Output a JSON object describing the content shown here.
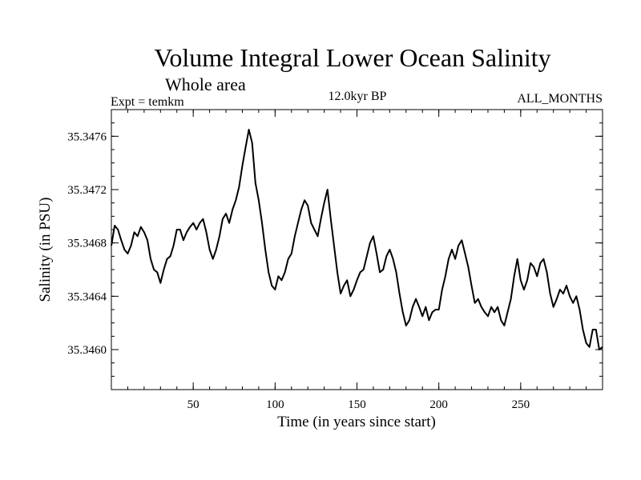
{
  "chart_data": {
    "type": "line",
    "title": "Volume Integral Lower Ocean Salinity",
    "subtitle": "Whole area",
    "header_left": "Expt = temkm",
    "header_center": "12.0kyr BP",
    "header_right": "ALL_MONTHS",
    "xlabel": "Time (in years since start)",
    "ylabel": "Salinity (in PSU)",
    "xlim": [
      0,
      300
    ],
    "ylim": [
      35.3457,
      35.3478
    ],
    "xticks": [
      50,
      100,
      150,
      200,
      250
    ],
    "xtick_labels": [
      "50",
      "100",
      "150",
      "200",
      "250"
    ],
    "yticks": [
      35.346,
      35.3464,
      35.3468,
      35.3472,
      35.3476
    ],
    "ytick_labels": [
      "35.3460",
      "35.3464",
      "35.3468",
      "35.3472",
      "35.3476"
    ],
    "x_minor_step": 10,
    "y_minor_step": 0.0001,
    "grid": false,
    "line_color": "#000000",
    "series": [
      {
        "name": "salinity",
        "x": [
          0,
          2,
          4,
          6,
          8,
          10,
          12,
          14,
          16,
          18,
          20,
          22,
          24,
          26,
          28,
          30,
          32,
          34,
          36,
          38,
          40,
          42,
          44,
          46,
          48,
          50,
          52,
          54,
          56,
          58,
          60,
          62,
          64,
          66,
          68,
          70,
          72,
          74,
          76,
          78,
          80,
          82,
          84,
          86,
          88,
          90,
          92,
          94,
          96,
          98,
          100,
          102,
          104,
          106,
          108,
          110,
          112,
          114,
          116,
          118,
          120,
          122,
          124,
          126,
          128,
          130,
          132,
          134,
          136,
          138,
          140,
          142,
          144,
          146,
          148,
          150,
          152,
          154,
          156,
          158,
          160,
          162,
          164,
          166,
          168,
          170,
          172,
          174,
          176,
          178,
          180,
          182,
          184,
          186,
          188,
          190,
          192,
          194,
          196,
          198,
          200,
          202,
          204,
          206,
          208,
          210,
          212,
          214,
          216,
          218,
          220,
          222,
          224,
          226,
          228,
          230,
          232,
          234,
          236,
          238,
          240,
          242,
          244,
          246,
          248,
          250,
          252,
          254,
          256,
          258,
          260,
          262,
          264,
          266,
          268,
          270,
          272,
          274,
          276,
          278,
          280,
          282,
          284,
          286,
          288,
          290,
          292,
          294,
          296,
          298,
          300
        ],
        "values": [
          35.34678,
          35.34693,
          35.3469,
          35.34682,
          35.34675,
          35.34672,
          35.34678,
          35.34688,
          35.34685,
          35.34692,
          35.34688,
          35.34682,
          35.34668,
          35.3466,
          35.34658,
          35.3465,
          35.3466,
          35.34668,
          35.3467,
          35.34678,
          35.3469,
          35.3469,
          35.34682,
          35.34688,
          35.34692,
          35.34695,
          35.3469,
          35.34695,
          35.34698,
          35.34688,
          35.34675,
          35.34668,
          35.34675,
          35.34685,
          35.34698,
          35.34702,
          35.34695,
          35.34705,
          35.34712,
          35.34722,
          35.34738,
          35.34752,
          35.34765,
          35.34755,
          35.34725,
          35.34712,
          35.34695,
          35.34675,
          35.34658,
          35.34648,
          35.34645,
          35.34655,
          35.34652,
          35.34658,
          35.34668,
          35.34672,
          35.34685,
          35.34695,
          35.34705,
          35.34712,
          35.34708,
          35.34695,
          35.3469,
          35.34685,
          35.34698,
          35.3471,
          35.3472,
          35.34698,
          35.34678,
          35.34658,
          35.34642,
          35.34648,
          35.34652,
          35.3464,
          35.34645,
          35.34652,
          35.34658,
          35.3466,
          35.3467,
          35.3468,
          35.34685,
          35.34672,
          35.34658,
          35.3466,
          35.3467,
          35.34675,
          35.34668,
          35.34658,
          35.34642,
          35.34628,
          35.34618,
          35.34622,
          35.34632,
          35.34638,
          35.34632,
          35.34625,
          35.34632,
          35.34622,
          35.34628,
          35.3463,
          35.3463,
          35.34645,
          35.34655,
          35.34668,
          35.34675,
          35.34668,
          35.34678,
          35.34682,
          35.34672,
          35.34662,
          35.34648,
          35.34635,
          35.34638,
          35.34632,
          35.34628,
          35.34625,
          35.34632,
          35.34628,
          35.34632,
          35.34622,
          35.34618,
          35.34628,
          35.34638,
          35.34655,
          35.34668,
          35.34652,
          35.34645,
          35.34652,
          35.34665,
          35.34662,
          35.34655,
          35.34665,
          35.34668,
          35.34658,
          35.34642,
          35.34632,
          35.34638,
          35.34645,
          35.34642,
          35.34648,
          35.3464,
          35.34635,
          35.3464,
          35.3463,
          35.34615,
          35.34605,
          35.34602,
          35.34615,
          35.34615,
          35.346,
          35.34602
        ]
      }
    ]
  }
}
